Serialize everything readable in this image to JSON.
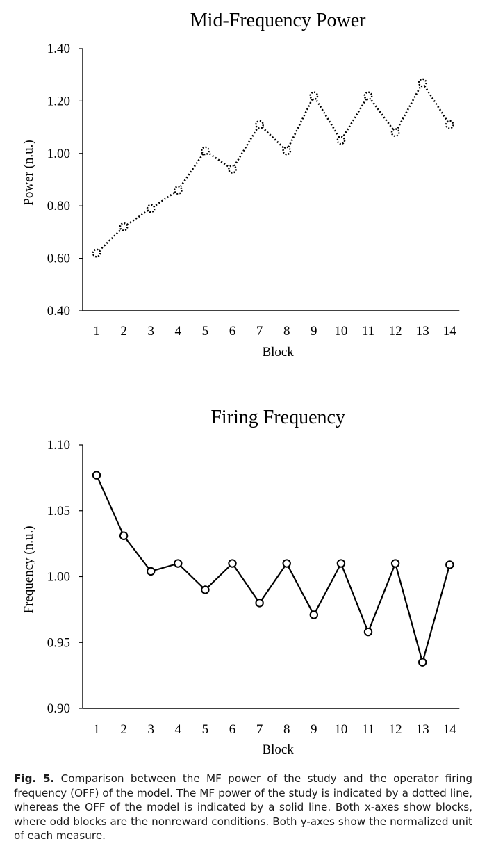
{
  "chart_data": [
    {
      "type": "line",
      "title": "Mid-Frequency Power",
      "xlabel": "Block",
      "ylabel": "Power (n.u.)",
      "categories": [
        "1",
        "2",
        "3",
        "4",
        "5",
        "6",
        "7",
        "8",
        "9",
        "10",
        "11",
        "12",
        "13",
        "14"
      ],
      "yticks": [
        "0.40",
        "0.60",
        "0.80",
        "1.00",
        "1.20",
        "1.40"
      ],
      "ylim": [
        0.4,
        1.4
      ],
      "line_style": "dotted",
      "marker": "dotted-circle",
      "series": [
        {
          "values": [
            0.62,
            0.72,
            0.79,
            0.86,
            1.01,
            0.94,
            1.11,
            1.01,
            1.22,
            1.05,
            1.22,
            1.08,
            1.27,
            1.11
          ]
        }
      ],
      "grid": false,
      "legend": "none"
    },
    {
      "type": "line",
      "title": "Firing Frequency",
      "xlabel": "Block",
      "ylabel": "Frequency (n.u.)",
      "categories": [
        "1",
        "2",
        "3",
        "4",
        "5",
        "6",
        "7",
        "8",
        "9",
        "10",
        "11",
        "12",
        "13",
        "14"
      ],
      "yticks": [
        "0.90",
        "0.95",
        "1.00",
        "1.05",
        "1.10"
      ],
      "ylim": [
        0.9,
        1.1
      ],
      "line_style": "solid",
      "marker": "open-circle",
      "series": [
        {
          "values": [
            1.077,
            1.031,
            1.004,
            1.01,
            0.99,
            1.01,
            0.98,
            1.01,
            0.971,
            1.01,
            0.958,
            1.01,
            0.935,
            1.009
          ]
        }
      ],
      "grid": false,
      "legend": "none"
    }
  ],
  "caption": {
    "label": "Fig. 5.",
    "text": "Comparison between the MF power of the study and the operator firing frequency (OFF) of the model. The MF power of the study is indicated by a dotted line, whereas the OFF of the model is indicated by a solid line. Both x-axes show blocks, where odd blocks are the nonreward conditions. Both y-axes show the normalized unit of each measure."
  },
  "colors": {
    "ink": "#000000",
    "caption": "#1a1a1a",
    "background": "#ffffff"
  }
}
